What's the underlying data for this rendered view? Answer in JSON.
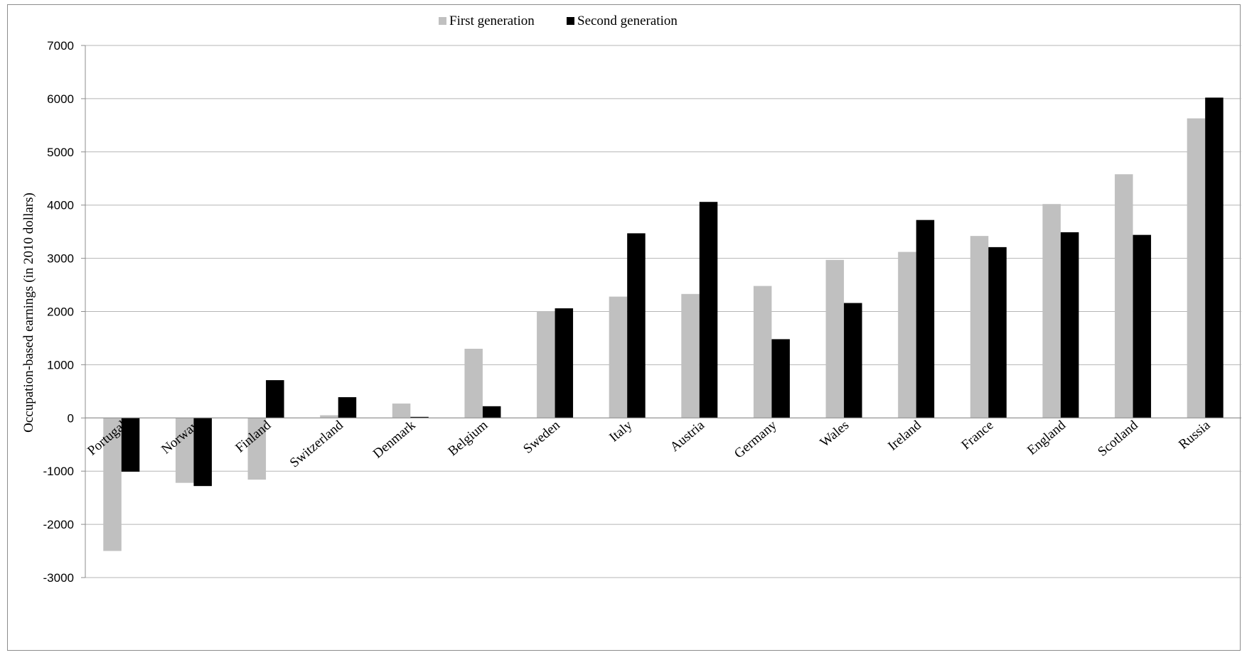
{
  "chart_data": {
    "type": "bar",
    "title": "",
    "xlabel": "",
    "ylabel": "Occupation-based earnings (in 2010 dollars)",
    "ylim": [
      -3000,
      7000
    ],
    "ytick_step": 1000,
    "grid": true,
    "legend_position": "top-center",
    "categories": [
      "Portugal",
      "Norway",
      "Finland",
      "Switzerland",
      "Denmark",
      "Belgium",
      "Sweden",
      "Italy",
      "Austria",
      "Germany",
      "Wales",
      "Ireland",
      "France",
      "England",
      "Scotland",
      "Russia"
    ],
    "series": [
      {
        "name": "First generation",
        "color": "#c0c0c0",
        "values": [
          -2500,
          -1220,
          -1160,
          50,
          270,
          1300,
          2000,
          2280,
          2330,
          2480,
          2970,
          3120,
          3420,
          4020,
          4580,
          5630
        ]
      },
      {
        "name": "Second generation",
        "color": "#000000",
        "values": [
          -1010,
          -1280,
          710,
          390,
          20,
          220,
          2060,
          3470,
          4060,
          1480,
          2160,
          3720,
          3210,
          3490,
          3440,
          6020
        ]
      }
    ]
  }
}
